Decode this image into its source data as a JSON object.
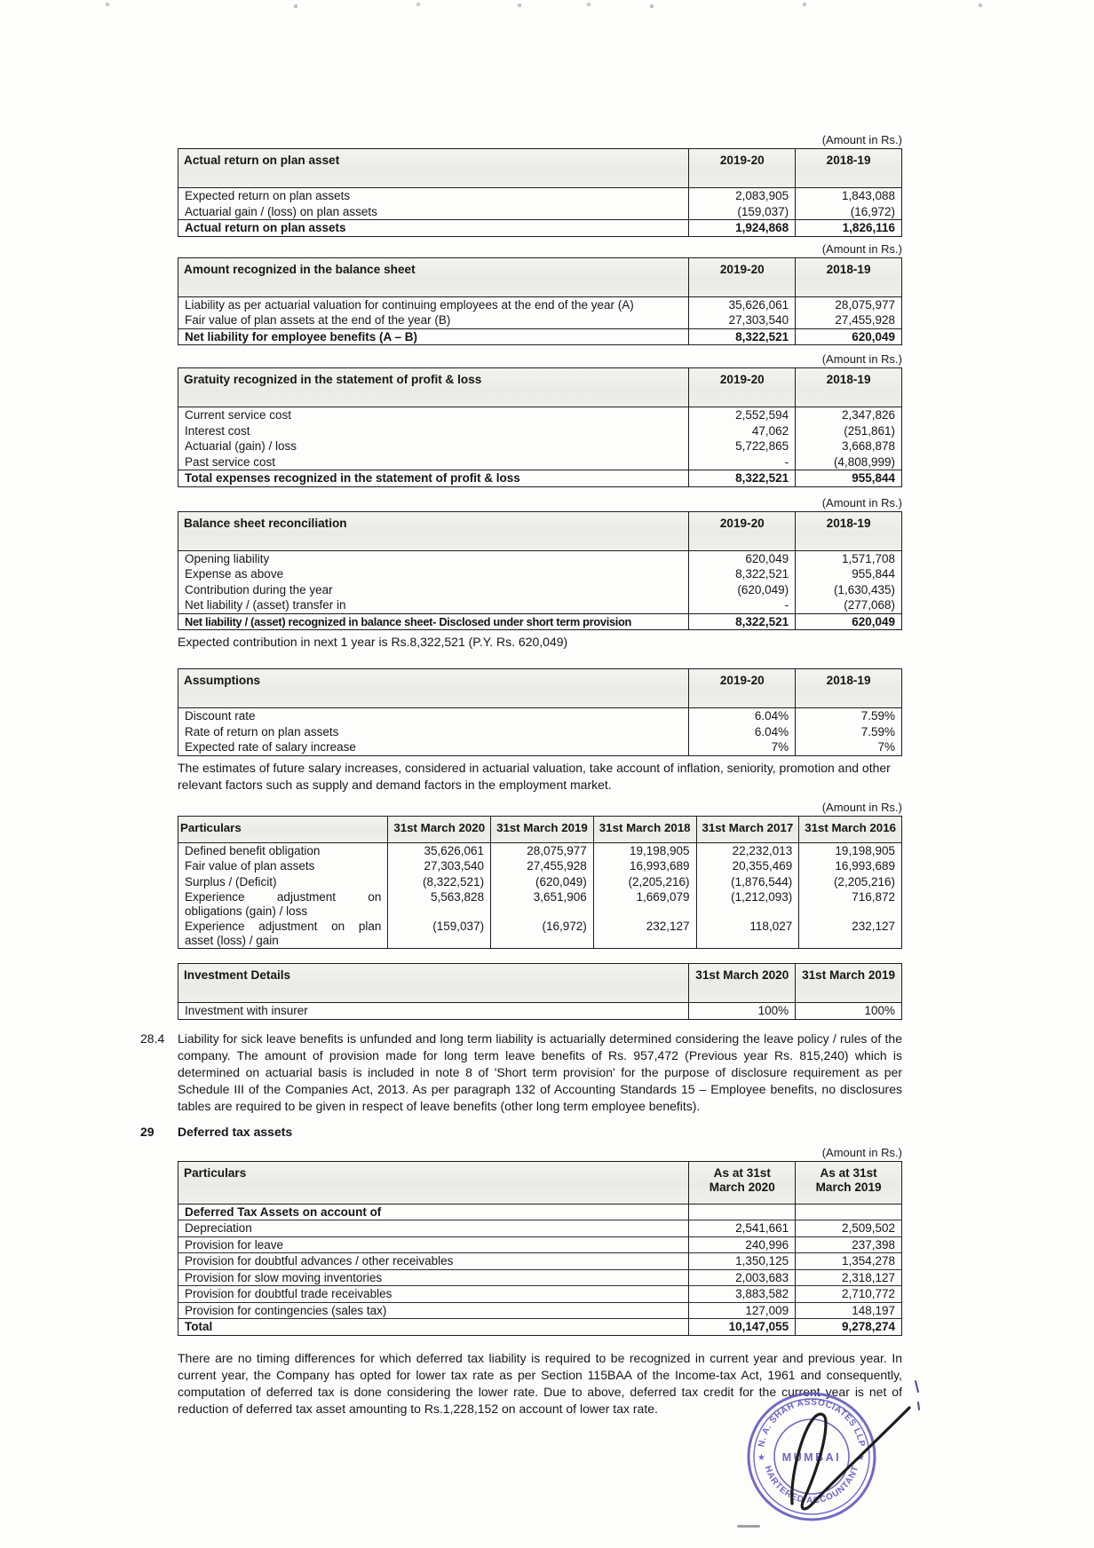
{
  "page": {
    "amount_note": "(Amount in Rs.)"
  },
  "tables": {
    "actual_return": {
      "title": "Actual return on plan asset",
      "headers": [
        "2019-20",
        "2018-19"
      ],
      "rows": [
        {
          "cells": [
            "Expected return on plan assets",
            "2,083,905",
            "1,843,088"
          ]
        },
        {
          "cells": [
            "Actuarial gain / (loss) on plan assets",
            "(159,037)",
            "(16,972)"
          ]
        },
        {
          "cells": [
            "Actual return on plan assets",
            "1,924,868",
            "1,826,116"
          ],
          "bold": true,
          "rule": true
        }
      ]
    },
    "balance_sheet_amount": {
      "title": "Amount recognized in the balance sheet",
      "headers": [
        "2019-20",
        "2018-19"
      ],
      "rows": [
        {
          "cells": [
            "Liability as per actuarial valuation for continuing employees at the end of the year (A)",
            "35,626,061",
            "28,075,977"
          ]
        },
        {
          "cells": [
            "Fair value of plan assets at the end of the year (B)",
            "27,303,540",
            "27,455,928"
          ]
        },
        {
          "cells": [
            "Net liability for employee benefits (A – B)",
            "8,322,521",
            "620,049"
          ],
          "bold": true,
          "rule": true
        }
      ]
    },
    "gratuity_pl": {
      "title": "Gratuity  recognized in the statement of profit & loss",
      "headers": [
        "2019-20",
        "2018-19"
      ],
      "rows": [
        {
          "cells": [
            "Current service cost",
            "2,552,594",
            "2,347,826"
          ]
        },
        {
          "cells": [
            "Interest cost",
            "47,062",
            "(251,861)"
          ]
        },
        {
          "cells": [
            "Actuarial (gain) / loss",
            "5,722,865",
            "3,668,878"
          ]
        },
        {
          "cells": [
            "Past service cost",
            "-",
            "(4,808,999)"
          ]
        },
        {
          "cells": [
            "Total expenses recognized in the statement of profit & loss",
            "8,322,521",
            "955,844"
          ],
          "bold": true,
          "rule": true
        }
      ]
    },
    "bs_reconciliation": {
      "title": "Balance sheet reconciliation",
      "headers": [
        "2019-20",
        "2018-19"
      ],
      "rows": [
        {
          "cells": [
            "Opening liability",
            "620,049",
            "1,571,708"
          ]
        },
        {
          "cells": [
            "Expense as above",
            "8,322,521",
            "955,844"
          ]
        },
        {
          "cells": [
            "Contribution during the year",
            "(620,049)",
            "(1,630,435)"
          ]
        },
        {
          "cells": [
            "Net liability / (asset) transfer in",
            "-",
            "(277,068)"
          ]
        },
        {
          "cells": [
            "Net liability / (asset) recognized in balance sheet- Disclosed under short term provision",
            "8,322,521",
            "620,049"
          ],
          "bold": true,
          "rule": true
        }
      ],
      "footnote": "Expected contribution in next 1 year is Rs.8,322,521 (P.Y. Rs. 620,049)"
    },
    "assumptions": {
      "title": "Assumptions",
      "headers": [
        "2019-20",
        "2018-19"
      ],
      "rows": [
        {
          "cells": [
            "Discount rate",
            "6.04%",
            "7.59%"
          ]
        },
        {
          "cells": [
            "Rate of return on plan assets",
            "6.04%",
            "7.59%"
          ]
        },
        {
          "cells": [
            "Expected rate of salary increase",
            "7%",
            "7%"
          ]
        }
      ],
      "footnote": "The estimates of future salary increases, considered in actuarial valuation, take account of inflation, seniority, promotion and other relevant factors such as supply and demand factors in the employment market."
    },
    "five_year": {
      "title": "Particulars",
      "headers": [
        "31st March 2020",
        "31st March 2019",
        "31st March 2018",
        "31st March 2017",
        "31st March 2016"
      ],
      "rows": [
        {
          "cells": [
            "Defined benefit obligation",
            "35,626,061",
            "28,075,977",
            "19,198,905",
            "22,232,013",
            "19,198,905"
          ]
        },
        {
          "cells": [
            "Fair value of plan assets",
            "27,303,540",
            "27,455,928",
            "16,993,689",
            "20,355,469",
            "16,993,689"
          ]
        },
        {
          "cells": [
            "Surplus / (Deficit)",
            "(8,322,521)",
            "(620,049)",
            "(2,205,216)",
            "(1,876,544)",
            "(2,205,216)"
          ]
        },
        {
          "cells": [
            "Experience adjustment on obligations (gain) / loss",
            "5,563,828",
            "3,651,906",
            "1,669,079",
            "(1,212,093)",
            "716,872"
          ]
        },
        {
          "cells": [
            "Experience adjustment on plan asset (loss) / gain",
            "(159,037)",
            "(16,972)",
            "232,127",
            "118,027",
            "232,127"
          ]
        }
      ]
    },
    "investment": {
      "title": "Investment Details",
      "headers": [
        "31st March 2020",
        "31st March 2019"
      ],
      "rows": [
        {
          "cells": [
            "Investment with insurer",
            "100%",
            "100%"
          ]
        }
      ]
    },
    "deferred_tax": {
      "title": "Particulars",
      "headers": [
        "As at 31st March 2020",
        "As at 31st March 2019"
      ],
      "rows": [
        {
          "cells": [
            "Deferred Tax Assets on account of",
            "",
            ""
          ],
          "bold": true
        },
        {
          "cells": [
            "Depreciation",
            "2,541,661",
            "2,509,502"
          ]
        },
        {
          "cells": [
            "Provision for leave",
            "240,996",
            "237,398"
          ]
        },
        {
          "cells": [
            "Provision for doubtful advances / other receivables",
            "1,350,125",
            "1,354,278"
          ]
        },
        {
          "cells": [
            "Provision for slow moving inventories",
            "2,003,683",
            "2,318,127"
          ]
        },
        {
          "cells": [
            "Provision for doubtful trade receivables",
            "3,883,582",
            "2,710,772"
          ]
        },
        {
          "cells": [
            "Provision for contingencies (sales tax)",
            "127,009",
            "148,197"
          ]
        },
        {
          "cells": [
            "Total",
            "10,147,055",
            "9,278,274"
          ],
          "bold": true,
          "rule": true
        }
      ]
    }
  },
  "sections": {
    "note_28_4": {
      "number": "28.4",
      "text": "Liability for sick leave benefits is unfunded and long term liability is actuarially determined considering the leave policy / rules of the company. The amount of provision made for long term leave benefits of Rs. 957,472 (Previous year Rs. 815,240) which is determined on actuarial basis is included in note 8 of 'Short term provision' for the purpose of disclosure requirement as per Schedule III of the Companies Act, 2013. As per paragraph 132 of Accounting Standards 15 – Employee benefits, no disclosures tables are required to be given in respect of leave benefits (other long term employee benefits)."
    },
    "note_29": {
      "number": "29",
      "heading": "Deferred tax assets"
    },
    "closing_text": "There are no timing differences for which deferred tax liability is required to be recognized in current year and previous year. In current year, the Company has opted for lower tax rate as per Section 115BAA of the Income-tax Act, 1961 and consequently, computation of deferred tax is done considering the lower rate. Due to above, deferred tax credit for the current year is net of reduction of deferred tax asset amounting to Rs.1,228,152 on account of lower tax rate."
  },
  "stamp": {
    "top_text": "N. A. SHAH ASSOCIATES LLP",
    "bottom_text": "CHARTERED ACCOUNTANTS",
    "center_text": "MUMBAI",
    "left_star": "★",
    "right_star": "★",
    "color": "#5f55bd"
  }
}
